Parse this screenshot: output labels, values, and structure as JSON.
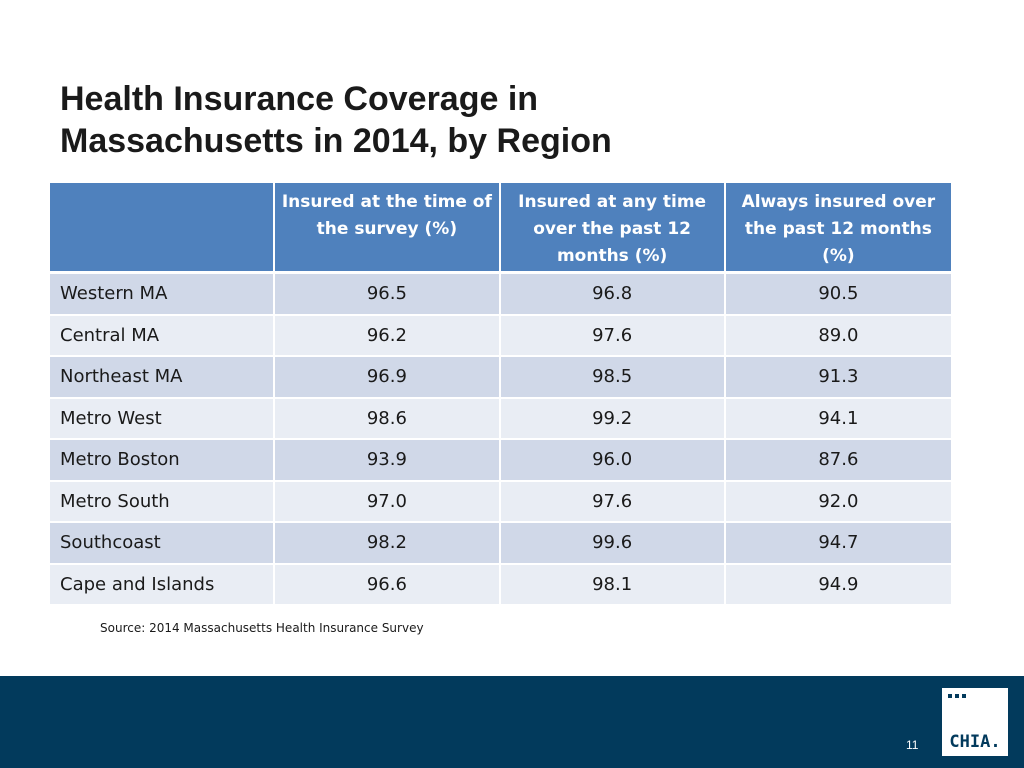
{
  "slide": {
    "title_line1": "Health Insurance Coverage in",
    "title_line2": "Massachusetts in 2014, by Region",
    "source": "Source:  2014 Massachusetts Health Insurance Survey",
    "page_number": "11",
    "logo_text": "CHIA."
  },
  "table": {
    "headers": [
      "",
      "Insured at the time of the survey (%)",
      "Insured at any time over the past 12 months (%)",
      "Always insured over the past 12 months (%)"
    ],
    "rows": [
      {
        "region": "Western MA",
        "at_survey": "96.5",
        "any_time": "96.8",
        "always": "90.5"
      },
      {
        "region": "Central MA",
        "at_survey": "96.2",
        "any_time": "97.6",
        "always": "89.0"
      },
      {
        "region": "Northeast MA",
        "at_survey": "96.9",
        "any_time": "98.5",
        "always": "91.3"
      },
      {
        "region": "Metro West",
        "at_survey": "98.6",
        "any_time": "99.2",
        "always": "94.1"
      },
      {
        "region": "Metro Boston",
        "at_survey": "93.9",
        "any_time": "96.0",
        "always": "87.6"
      },
      {
        "region": "Metro South",
        "at_survey": "97.0",
        "any_time": "97.6",
        "always": "92.0"
      },
      {
        "region": "Southcoast",
        "at_survey": "98.2",
        "any_time": "99.6",
        "always": "94.7"
      },
      {
        "region": "Cape and Islands",
        "at_survey": "96.6",
        "any_time": "98.1",
        "always": "94.9"
      }
    ]
  },
  "colors": {
    "header_bg": "#4f81bd",
    "row_dark": "#d0d8e8",
    "row_light": "#e9edf4",
    "footer_bg": "#023a5c"
  }
}
